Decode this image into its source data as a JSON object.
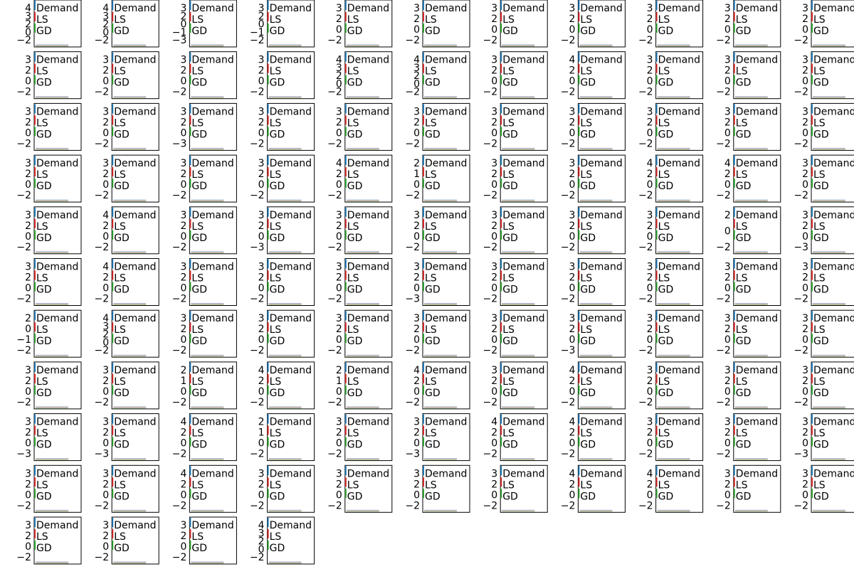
{
  "chart_data": {
    "type": "line",
    "layout": "small-multiples",
    "rows": 11,
    "cols": 11,
    "n_panels": 114,
    "legend": [
      "Demand",
      "LS",
      "GD"
    ],
    "legend_placement": "upper-left",
    "colors": {
      "demand": "#1f77b4",
      "ls": "#d62728",
      "gd": "#2ca02c",
      "frame": "#000000",
      "background": "#ffffff"
    },
    "grid": false,
    "ytick_labels": [
      [
        "4",
        "3",
        "2",
        "0",
        "-2"
      ],
      [
        "4",
        "3",
        "2",
        "0",
        "-2"
      ],
      [
        "3",
        "2",
        "0",
        "-1",
        "-3"
      ],
      [
        "3",
        "2",
        "0",
        "-1",
        "-2"
      ],
      [
        "3",
        "2",
        "0",
        "-2"
      ],
      [
        "3",
        "2",
        "0",
        "-2"
      ],
      [
        "3",
        "2",
        "0",
        "-2"
      ],
      [
        "3",
        "2",
        "0",
        "-2"
      ],
      [
        "3",
        "2",
        "0",
        "-2"
      ],
      [
        "3",
        "2",
        "0",
        "-2"
      ],
      [
        "3",
        "2",
        "0",
        "-2"
      ],
      [
        "3",
        "2",
        "0",
        "-2"
      ],
      [
        "3",
        "2",
        "0",
        "-2"
      ],
      [
        "3",
        "2",
        "0",
        "-2"
      ],
      [
        "3",
        "2",
        "0",
        "-2"
      ],
      [
        "4",
        "3",
        "2",
        "0",
        "-2"
      ],
      [
        "4",
        "3",
        "2",
        "0",
        "-2"
      ],
      [
        "3",
        "2",
        "0",
        "-2"
      ],
      [
        "4",
        "2",
        "0",
        "-2"
      ],
      [
        "3",
        "2",
        "0",
        "-2"
      ],
      [
        "3",
        "2",
        "0",
        "-2"
      ],
      [
        "3",
        "2",
        "0",
        "-2"
      ],
      [
        "3",
        "2",
        "0",
        "-2"
      ],
      [
        "3",
        "2",
        "0",
        "-2"
      ],
      [
        "3",
        "2",
        "0",
        "-3"
      ],
      [
        "3",
        "2",
        "0",
        "-2"
      ],
      [
        "3",
        "2",
        "0",
        "-2"
      ],
      [
        "3",
        "2",
        "0",
        "-2"
      ],
      [
        "3",
        "2",
        "0",
        "-2"
      ],
      [
        "3",
        "2",
        "0",
        "-2"
      ],
      [
        "3",
        "2",
        "0",
        "-2"
      ],
      [
        "3",
        "2",
        "0",
        "-2"
      ],
      [
        "3",
        "2",
        "0",
        "-2"
      ],
      [
        "3",
        "2",
        "0",
        "-2"
      ],
      [
        "3",
        "2",
        "0",
        "-2"
      ],
      [
        "3",
        "2",
        "0",
        "-2"
      ],
      [
        "3",
        "2",
        "0",
        "-2"
      ],
      [
        "4",
        "2",
        "0",
        "-2"
      ],
      [
        "2",
        "1",
        "0",
        "-2"
      ],
      [
        "3",
        "2",
        "0",
        "-2"
      ],
      [
        "3",
        "2",
        "0",
        "-2"
      ],
      [
        "4",
        "2",
        "0",
        "-2"
      ],
      [
        "4",
        "2",
        "0",
        "-2"
      ],
      [
        "3",
        "2",
        "0",
        "-2"
      ],
      [
        "3",
        "2",
        "0",
        "-2"
      ],
      [
        "4",
        "2",
        "0",
        "-2"
      ],
      [
        "3",
        "2",
        "0",
        "-2"
      ],
      [
        "3",
        "2",
        "0",
        "-3"
      ],
      [
        "3",
        "2",
        "0",
        "-2"
      ],
      [
        "3",
        "2",
        "0",
        "-2"
      ],
      [
        "3",
        "2",
        "0",
        "-2"
      ],
      [
        "3",
        "2",
        "0",
        "-2"
      ],
      [
        "3",
        "2",
        "0",
        "-2"
      ],
      [
        "2",
        "0",
        "-2"
      ],
      [
        "3",
        "2",
        "0",
        "-3"
      ],
      [
        "3",
        "2",
        "0",
        "-2"
      ],
      [
        "4",
        "2",
        "0",
        "-2"
      ],
      [
        "3",
        "2",
        "0",
        "-2"
      ],
      [
        "3",
        "2",
        "0",
        "-2"
      ],
      [
        "3",
        "2",
        "0",
        "-2"
      ],
      [
        "3",
        "2",
        "0",
        "-3"
      ],
      [
        "3",
        "2",
        "0",
        "-2"
      ],
      [
        "3",
        "2",
        "0",
        "-2"
      ],
      [
        "3",
        "2",
        "0",
        "-2"
      ],
      [
        "3",
        "2",
        "0",
        "-2"
      ],
      [
        "3",
        "2",
        "0",
        "-2"
      ],
      [
        "2",
        "0",
        "-1",
        "-2"
      ],
      [
        "4",
        "3",
        "2",
        "0",
        "-2"
      ],
      [
        "3",
        "2",
        "0",
        "-2"
      ],
      [
        "3",
        "2",
        "0",
        "-2"
      ],
      [
        "3",
        "2",
        "0",
        "-2"
      ],
      [
        "3",
        "2",
        "0",
        "-2"
      ],
      [
        "3",
        "2",
        "0",
        "-2"
      ],
      [
        "3",
        "2",
        "0",
        "-3"
      ],
      [
        "3",
        "2",
        "0",
        "-2"
      ],
      [
        "3",
        "2",
        "0",
        "-2"
      ],
      [
        "3",
        "2",
        "0",
        "-2"
      ],
      [
        "3",
        "2",
        "0",
        "-2"
      ],
      [
        "3",
        "2",
        "0",
        "-2"
      ],
      [
        "2",
        "1",
        "0",
        "-2"
      ],
      [
        "4",
        "2",
        "0",
        "-2"
      ],
      [
        "2",
        "1",
        "0",
        "-2"
      ],
      [
        "4",
        "2",
        "0",
        "-2"
      ],
      [
        "3",
        "2",
        "0",
        "-2"
      ],
      [
        "4",
        "2",
        "0",
        "-2"
      ],
      [
        "3",
        "2",
        "0",
        "-2"
      ],
      [
        "3",
        "2",
        "0",
        "-2"
      ],
      [
        "3",
        "2",
        "0",
        "-2"
      ],
      [
        "3",
        "2",
        "0",
        "-3"
      ],
      [
        "3",
        "2",
        "0",
        "-3"
      ],
      [
        "4",
        "2",
        "0",
        "-2"
      ],
      [
        "2",
        "1",
        "0",
        "-2"
      ],
      [
        "3",
        "2",
        "0",
        "-2"
      ],
      [
        "3",
        "2",
        "0",
        "-3"
      ],
      [
        "4",
        "2",
        "0",
        "-2"
      ],
      [
        "4",
        "2",
        "0",
        "-2"
      ],
      [
        "3",
        "2",
        "0",
        "-2"
      ],
      [
        "3",
        "2",
        "0",
        "-2"
      ],
      [
        "3",
        "2",
        "0",
        "-3"
      ],
      [
        "3",
        "2",
        "0",
        "-2"
      ],
      [
        "3",
        "2",
        "0",
        "-2"
      ],
      [
        "4",
        "2",
        "0",
        "-2"
      ],
      [
        "3",
        "2",
        "0",
        "-2"
      ],
      [
        "3",
        "2",
        "0",
        "-2"
      ],
      [
        "3",
        "2",
        "0",
        "-2"
      ],
      [
        "3",
        "2",
        "0",
        "-2"
      ],
      [
        "4",
        "2",
        "0",
        "-2"
      ],
      [
        "4",
        "2",
        "0",
        "-2"
      ],
      [
        "3",
        "2",
        "0",
        "-2"
      ],
      [
        "3",
        "2",
        "0",
        "-2"
      ],
      [
        "3",
        "2",
        "0",
        "-2"
      ],
      [
        "3",
        "2",
        "0",
        "-2"
      ],
      [
        "3",
        "2",
        "0",
        "-2"
      ],
      [
        "4",
        "3",
        "2",
        "0",
        "-2"
      ]
    ]
  }
}
